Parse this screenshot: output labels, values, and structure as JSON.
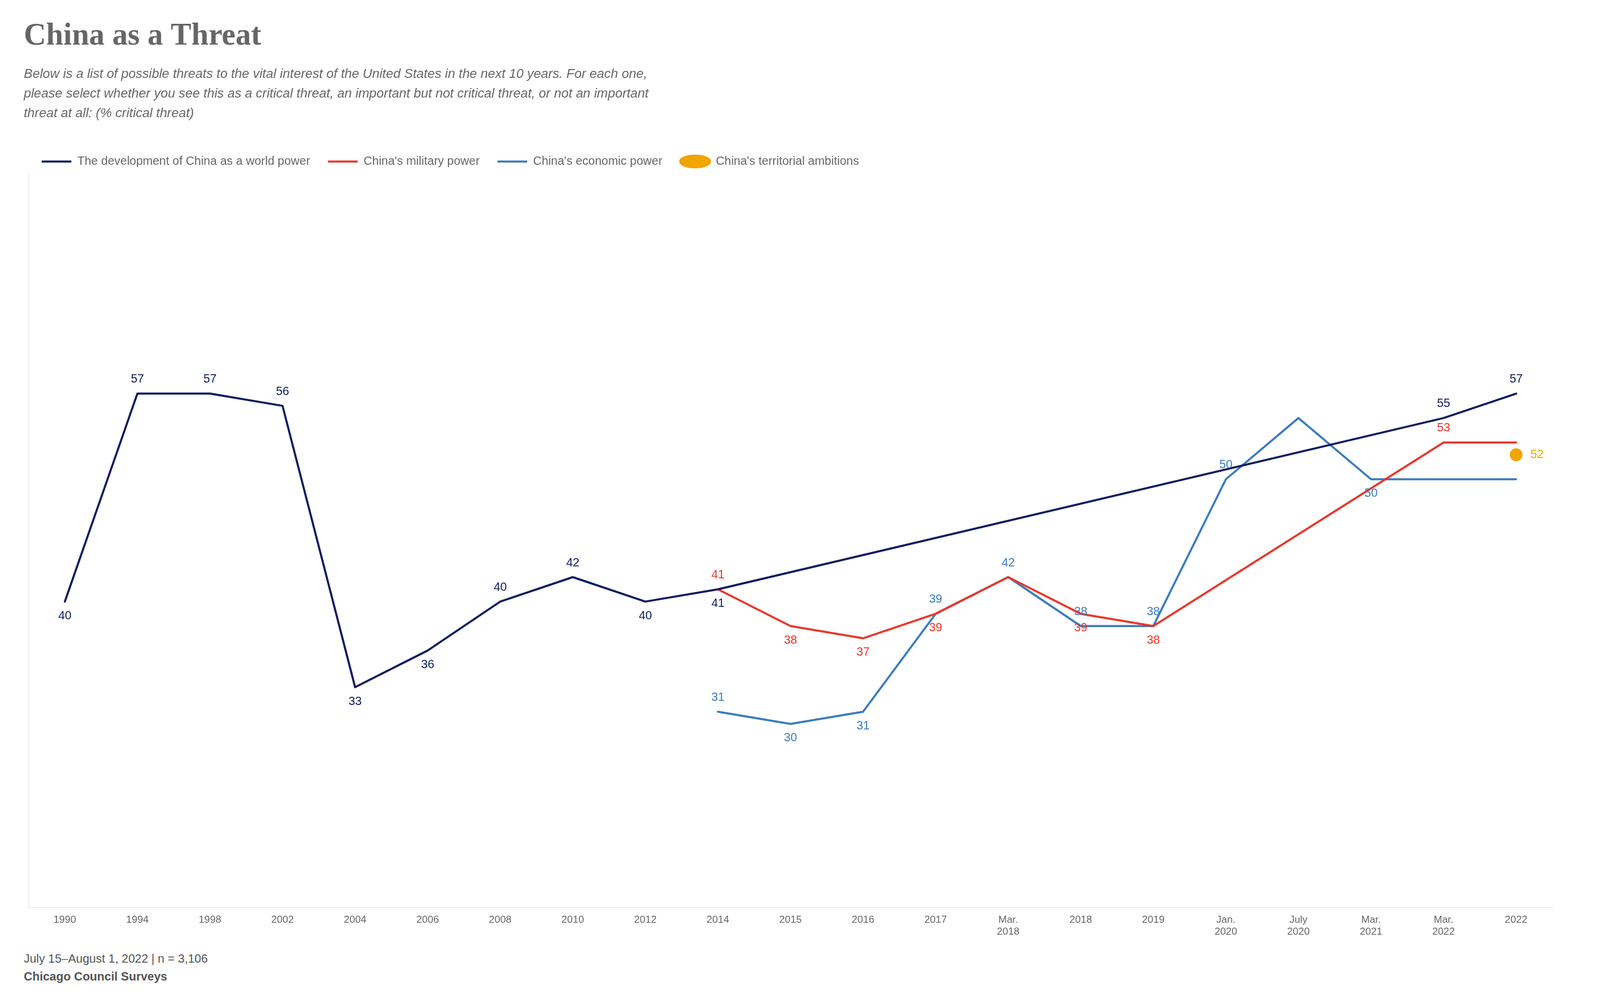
{
  "chart_data": {
    "type": "line",
    "title": "China as a Threat",
    "subtitle": "Below is a list of possible threats to the vital interest of the United States in the next 10 years. For each one,\nplease select whether you see this as a critical threat, an important but not critical threat, or not an important\nthreat at all: (% critical threat)",
    "footer": [
      "July 15–August 1, 2022 | n = 3,106",
      "Chicago Council Surveys"
    ],
    "categories": [
      "1990",
      "1994",
      "1998",
      "2002",
      "2004",
      "2006",
      "2008",
      "2010",
      "2012",
      "2014",
      "2015",
      "2016",
      "2017",
      "Mar.\n2018",
      "2018",
      "2019",
      "Jan.\n2020",
      "July\n2020",
      "Mar.\n2021",
      "Mar.\n2022",
      "2022"
    ],
    "series": [
      {
        "name": "The development of China as a world power",
        "color": "#0d1b5e",
        "values": [
          40,
          57,
          57,
          56,
          33,
          36,
          40,
          42,
          40,
          41,
          null,
          null,
          null,
          null,
          null,
          null,
          null,
          null,
          null,
          55,
          57
        ],
        "value_labels": [
          "40",
          "57",
          "57",
          "56",
          "33",
          "36",
          "40",
          "42",
          "40",
          "41",
          null,
          null,
          null,
          null,
          null,
          null,
          null,
          null,
          null,
          "55",
          "57"
        ]
      },
      {
        "name": "China's military power",
        "color": "#e8372a",
        "values": [
          null,
          null,
          null,
          null,
          null,
          null,
          null,
          null,
          null,
          41,
          38,
          37,
          39,
          42,
          39,
          38,
          null,
          null,
          null,
          53,
          53
        ],
        "value_labels": [
          null,
          null,
          null,
          null,
          null,
          null,
          null,
          null,
          null,
          "41",
          "38",
          "37",
          "39",
          null,
          "39",
          "38",
          null,
          null,
          null,
          "53",
          null
        ]
      },
      {
        "name": "China's economic power",
        "color": "#3b7bbf",
        "values": [
          null,
          null,
          null,
          null,
          null,
          null,
          null,
          null,
          null,
          31,
          30,
          31,
          39,
          42,
          38,
          38,
          50,
          55,
          50,
          50,
          50
        ],
        "value_labels": [
          null,
          null,
          null,
          null,
          null,
          null,
          null,
          null,
          null,
          "31",
          "30",
          "31",
          "39",
          "42",
          "38",
          "38",
          "50",
          null,
          "50",
          null,
          null
        ]
      },
      {
        "name": "China's territorial ambitions",
        "color": "#f0a500",
        "marker": "circle",
        "values": [
          null,
          null,
          null,
          null,
          null,
          null,
          null,
          null,
          null,
          null,
          null,
          null,
          null,
          null,
          null,
          null,
          null,
          null,
          null,
          null,
          52
        ],
        "value_labels": [
          null,
          null,
          null,
          null,
          null,
          null,
          null,
          null,
          null,
          null,
          null,
          null,
          null,
          null,
          null,
          null,
          null,
          null,
          null,
          null,
          "52"
        ]
      }
    ],
    "ylim": [
      15,
      75
    ],
    "tick_labels": "x",
    "grid": false,
    "legend": "top",
    "data_labels": true
  }
}
